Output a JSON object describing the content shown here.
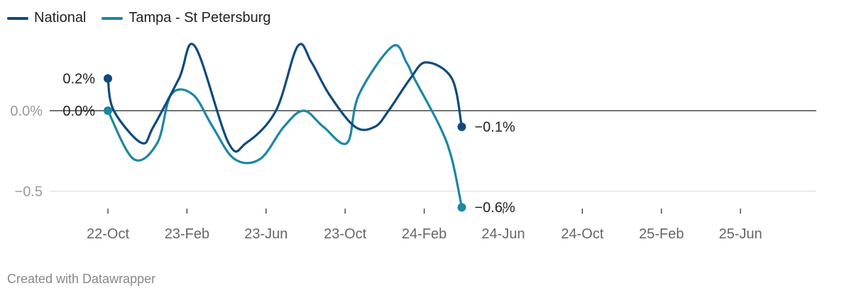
{
  "chart_data": {
    "type": "line",
    "title": "",
    "xlabel": "",
    "ylabel": "",
    "ylim": [
      -0.6,
      0.45
    ],
    "x_tick_labels": [
      "22-Oct",
      "23-Feb",
      "23-Jun",
      "23-Oct",
      "24-Feb",
      "24-Jun",
      "24-Oct",
      "25-Feb",
      "25-Jun"
    ],
    "y_ticks": [
      {
        "value": 0,
        "label": "0.0%"
      },
      {
        "value": -0.5,
        "label": "−0.5"
      }
    ],
    "series": [
      {
        "name": "National",
        "color": "#0d4a7e",
        "start_label": "0.2%",
        "end_label": "−0.1%",
        "points": [
          [
            0,
            0.2
          ],
          [
            0.3,
            0.0
          ],
          [
            1.7,
            -0.2
          ],
          [
            2.3,
            -0.1
          ],
          [
            3.6,
            0.2
          ],
          [
            4.4,
            0.4
          ],
          [
            6.1,
            -0.2
          ],
          [
            7.0,
            -0.2
          ],
          [
            8.5,
            0.0
          ],
          [
            9.6,
            0.4
          ],
          [
            10.3,
            0.3
          ],
          [
            11.2,
            0.1
          ],
          [
            12.5,
            -0.1
          ],
          [
            13.5,
            -0.1
          ],
          [
            14.2,
            0.0
          ],
          [
            15.3,
            0.2
          ],
          [
            16.1,
            0.3
          ],
          [
            17.4,
            0.2
          ],
          [
            17.9,
            -0.1
          ]
        ]
      },
      {
        "name": "Tampa - St Petersburg",
        "color": "#1c87a3",
        "start_label": "0.0%",
        "end_label": "−0.6%",
        "points": [
          [
            0,
            0.0
          ],
          [
            1.3,
            -0.3
          ],
          [
            2.5,
            -0.2
          ],
          [
            3.2,
            0.1
          ],
          [
            4.3,
            0.1
          ],
          [
            5.3,
            -0.1
          ],
          [
            6.4,
            -0.3
          ],
          [
            7.7,
            -0.3
          ],
          [
            8.9,
            -0.1
          ],
          [
            9.9,
            0.0
          ],
          [
            10.9,
            -0.1
          ],
          [
            12.1,
            -0.2
          ],
          [
            12.7,
            0.1
          ],
          [
            14.4,
            0.4
          ],
          [
            15.1,
            0.3
          ],
          [
            15.5,
            0.2
          ],
          [
            16.8,
            -0.1
          ],
          [
            17.4,
            -0.3
          ],
          [
            17.9,
            -0.6
          ]
        ]
      }
    ]
  },
  "footer": "Created with Datawrapper"
}
